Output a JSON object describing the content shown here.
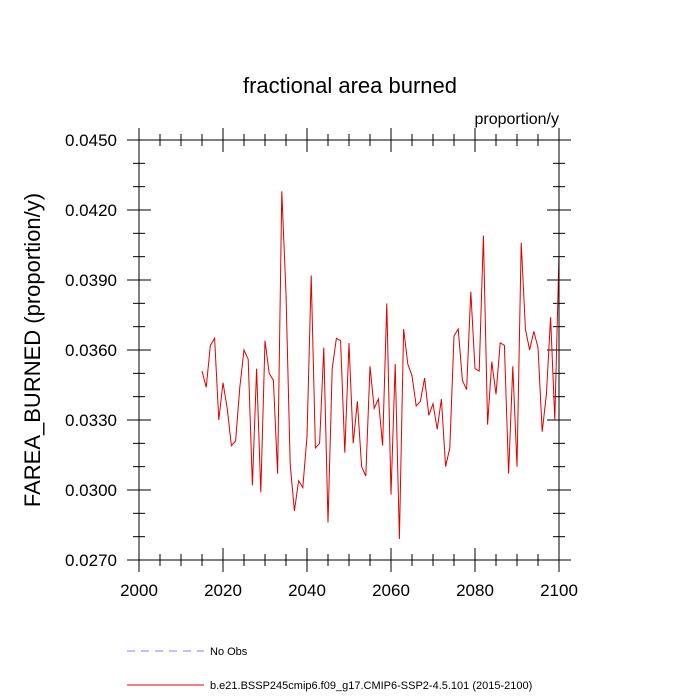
{
  "chart_data": {
    "type": "line",
    "title": "fractional area burned",
    "units_label": "proportion/y",
    "xlabel": "",
    "ylabel": "FAREA_BURNED  (proportion/y)",
    "xlim": [
      2000,
      2100
    ],
    "ylim": [
      0.027,
      0.045
    ],
    "x_ticks": [
      2000,
      2020,
      2040,
      2060,
      2080,
      2100
    ],
    "y_ticks": [
      "0.0270",
      "0.0300",
      "0.0330",
      "0.0360",
      "0.0390",
      "0.0420",
      "0.0450"
    ],
    "legend": [
      {
        "name": "No Obs",
        "color": "#7f7fff",
        "style": "dashed"
      },
      {
        "name": "b.e21.BSSP245cmip6.f09_g17.CMIP6-SSP2-4.5.101 (2015-2100)",
        "color": "#e00000",
        "style": "solid"
      }
    ],
    "series": [
      {
        "name": "b.e21.BSSP245cmip6.f09_g17.CMIP6-SSP2-4.5.101 (2015-2100)",
        "color": "#e00000",
        "x": [
          2015,
          2016,
          2017,
          2018,
          2019,
          2020,
          2021,
          2022,
          2023,
          2024,
          2025,
          2026,
          2027,
          2028,
          2029,
          2030,
          2031,
          2032,
          2033,
          2034,
          2035,
          2036,
          2037,
          2038,
          2039,
          2040,
          2041,
          2042,
          2043,
          2044,
          2045,
          2046,
          2047,
          2048,
          2049,
          2050,
          2051,
          2052,
          2053,
          2054,
          2055,
          2056,
          2057,
          2058,
          2059,
          2060,
          2061,
          2062,
          2063,
          2064,
          2065,
          2066,
          2067,
          2068,
          2069,
          2070,
          2071,
          2072,
          2073,
          2074,
          2075,
          2076,
          2077,
          2078,
          2079,
          2080,
          2081,
          2082,
          2083,
          2084,
          2085,
          2086,
          2087,
          2088,
          2089,
          2090,
          2091,
          2092,
          2093,
          2094,
          2095,
          2096,
          2097,
          2098,
          2099,
          2100
        ],
        "y": [
          0.0351,
          0.0344,
          0.0362,
          0.0365,
          0.033,
          0.0346,
          0.0335,
          0.0319,
          0.0321,
          0.0344,
          0.036,
          0.0356,
          0.0302,
          0.0352,
          0.0299,
          0.0364,
          0.035,
          0.0347,
          0.0307,
          0.0428,
          0.0384,
          0.0311,
          0.0291,
          0.0304,
          0.0301,
          0.0323,
          0.0392,
          0.0318,
          0.032,
          0.0361,
          0.0286,
          0.0352,
          0.0365,
          0.0364,
          0.0316,
          0.0363,
          0.032,
          0.0338,
          0.031,
          0.0306,
          0.0353,
          0.0335,
          0.0339,
          0.0319,
          0.038,
          0.0298,
          0.0354,
          0.0279,
          0.0369,
          0.0354,
          0.0349,
          0.0336,
          0.0338,
          0.0348,
          0.0332,
          0.0337,
          0.0326,
          0.0339,
          0.031,
          0.0318,
          0.0366,
          0.0369,
          0.0347,
          0.0343,
          0.0385,
          0.0352,
          0.0351,
          0.0409,
          0.0328,
          0.0355,
          0.0341,
          0.0363,
          0.0362,
          0.0307,
          0.0353,
          0.031,
          0.0406,
          0.0369,
          0.036,
          0.0368,
          0.0361,
          0.0325,
          0.0341,
          0.0374,
          0.033,
          0.0401
        ]
      }
    ]
  }
}
